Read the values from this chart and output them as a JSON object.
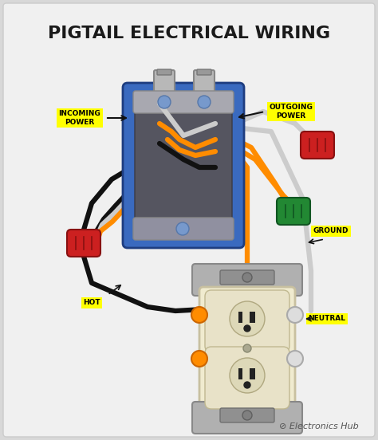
{
  "title": "PIGTAIL ELECTRICAL WIRING",
  "title_fontsize": 16,
  "title_color": "#1a1a1a",
  "background_color": "#d8d8d8",
  "card_color": "#efefef",
  "label_bg": "#ffff00",
  "label_fontsize": 6.5,
  "label_color": "#000000",
  "wire_hot": "#111111",
  "wire_neutral": "#cccccc",
  "wire_ground": "#ff8c00",
  "box_blue": "#3a6abf",
  "box_dark": "#555560",
  "box_edge": "#1e3d80",
  "outlet_cream": "#f0ebcf",
  "outlet_edge": "#c8c0a0",
  "bracket_gray": "#b0b0b0",
  "nut_red": "#cc2020",
  "nut_green": "#228833",
  "watermark": "Electronics Hub",
  "watermark_fontsize": 8,
  "labels": {
    "incoming": "INCOMING\nPOWER",
    "outgoing": "OUTGOING\nPOWER",
    "hot": "HOT",
    "neutral": "NEUTRAL",
    "ground": "GROUND"
  }
}
